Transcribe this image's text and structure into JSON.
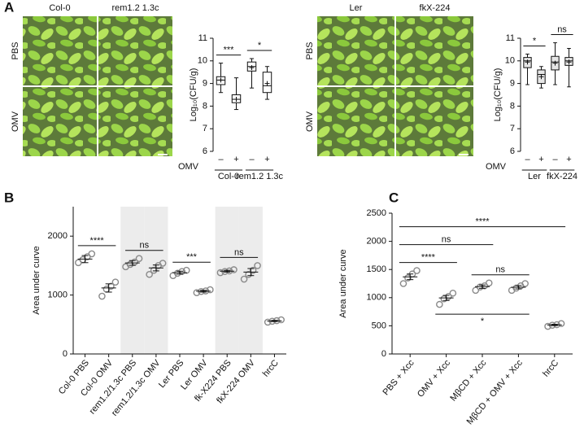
{
  "panel_labels": [
    "A",
    "B",
    "C"
  ],
  "photos": [
    {
      "columns": [
        "Col-0",
        "rem1.2 1.3c"
      ],
      "rows": [
        "PBS",
        "OMV"
      ]
    },
    {
      "columns": [
        "Ler",
        "fkX-224"
      ],
      "rows": [
        "PBS",
        "OMV"
      ]
    }
  ],
  "chart_data": [
    {
      "type": "box",
      "ylabel": "Log₁₀(CFU/g)",
      "ylim": [
        6,
        11
      ],
      "yticks": [
        6,
        7,
        8,
        9,
        10,
        11
      ],
      "categories": [
        "–",
        "+",
        "–",
        "+"
      ],
      "row_label": "OMV",
      "groups": [
        "Col-0",
        "rem1.2 1.3c"
      ],
      "box_color": "#ffffff",
      "boxes": [
        {
          "min": 8.6,
          "q1": 8.95,
          "median": 9.15,
          "q3": 9.3,
          "max": 9.9,
          "mean": 9.15
        },
        {
          "min": 7.85,
          "q1": 8.15,
          "median": 8.3,
          "q3": 8.5,
          "max": 9.25,
          "mean": 8.3
        },
        {
          "min": 8.8,
          "q1": 9.55,
          "median": 9.75,
          "q3": 9.95,
          "max": 10.1,
          "mean": 9.7
        },
        {
          "min": 8.3,
          "q1": 8.6,
          "median": 8.9,
          "q3": 9.5,
          "max": 9.75,
          "mean": 9.0
        }
      ],
      "brackets": [
        {
          "from": 0,
          "to": 1,
          "label": "***"
        },
        {
          "from": 2,
          "to": 3,
          "label": "*"
        }
      ]
    },
    {
      "type": "box",
      "ylabel": "Log₁₀(CFU/g)",
      "ylim": [
        6,
        11
      ],
      "yticks": [
        6,
        7,
        8,
        9,
        10,
        11
      ],
      "categories": [
        "–",
        "+",
        "–",
        "+"
      ],
      "row_label": "OMV",
      "groups": [
        "Ler",
        "fkX-224"
      ],
      "box_color": "#e6e6e6",
      "boxes": [
        {
          "min": 8.95,
          "q1": 9.7,
          "median": 10.0,
          "q3": 10.15,
          "max": 10.3,
          "mean": 9.95
        },
        {
          "min": 8.8,
          "q1": 9.0,
          "median": 9.4,
          "q3": 9.6,
          "max": 9.75,
          "mean": 9.3
        },
        {
          "min": 8.95,
          "q1": 9.6,
          "median": 9.95,
          "q3": 10.2,
          "max": 10.8,
          "mean": 9.9
        },
        {
          "min": 8.85,
          "q1": 9.8,
          "median": 10.0,
          "q3": 10.15,
          "max": 10.55,
          "mean": 9.95
        }
      ],
      "brackets": [
        {
          "from": 0,
          "to": 1,
          "label": "*"
        },
        {
          "from": 2,
          "to": 3,
          "label": "ns"
        }
      ]
    },
    {
      "type": "dot",
      "ylabel": "Area under curve",
      "ylim": [
        0,
        2500
      ],
      "yticks": [
        0,
        1000,
        2000
      ],
      "point_color": "#8a8a8a",
      "shaded": [
        2,
        3,
        6,
        7
      ],
      "categories": [
        "Col-0 PBS",
        "Col-0 OMV",
        "rem1.2/1.3c PBS",
        "rem1.2/1.3c OMV",
        "Ler PBS",
        "Ler OMV",
        "fk-X224 PBS",
        "fkX-224 OMV",
        "hrcC"
      ],
      "points": [
        [
          1550,
          1600,
          1650,
          1700
        ],
        [
          980,
          1100,
          1150,
          1220
        ],
        [
          1480,
          1520,
          1560,
          1620
        ],
        [
          1350,
          1420,
          1500,
          1540
        ],
        [
          1330,
          1370,
          1400,
          1420
        ],
        [
          1040,
          1060,
          1070,
          1090
        ],
        [
          1380,
          1400,
          1410,
          1430
        ],
        [
          1270,
          1350,
          1420,
          1500
        ],
        [
          540,
          555,
          565,
          580
        ]
      ],
      "means": [
        1610,
        1120,
        1545,
        1460,
        1380,
        1065,
        1405,
        1390,
        560
      ],
      "sems": [
        60,
        70,
        40,
        50,
        25,
        15,
        15,
        60,
        10
      ],
      "brackets": [
        {
          "from": 0,
          "to": 1,
          "label": "****"
        },
        {
          "from": 2,
          "to": 3,
          "label": "ns"
        },
        {
          "from": 4,
          "to": 5,
          "label": "***"
        },
        {
          "from": 6,
          "to": 7,
          "label": "ns"
        }
      ]
    },
    {
      "type": "dot",
      "ylabel": "Area under curve",
      "ylim": [
        0,
        2500
      ],
      "yticks": [
        0,
        500,
        1000,
        1500,
        2000,
        2500
      ],
      "point_color": "#8a8a8a",
      "shaded": [],
      "categories": [
        "PBS + Xcc",
        "OMV + Xcc",
        "MβCD + Xcc",
        "MβCD + OMV + Xcc",
        "hrcC"
      ],
      "points": [
        [
          1250,
          1350,
          1420,
          1480
        ],
        [
          880,
          980,
          1020,
          1080
        ],
        [
          1130,
          1190,
          1210,
          1260
        ],
        [
          1130,
          1170,
          1210,
          1250
        ],
        [
          490,
          510,
          520,
          540
        ]
      ],
      "means": [
        1370,
        995,
        1195,
        1185,
        515
      ],
      "sems": [
        50,
        45,
        30,
        30,
        12
      ],
      "brackets": [
        {
          "from": 0,
          "to": 4,
          "label": "****"
        },
        {
          "from": 0,
          "to": 2,
          "label": "ns"
        },
        {
          "from": 0,
          "to": 1,
          "label": "****"
        },
        {
          "from": 2,
          "to": 3,
          "label": "ns"
        },
        {
          "from": 1,
          "to": 3,
          "label": "*",
          "below": true
        }
      ]
    }
  ]
}
